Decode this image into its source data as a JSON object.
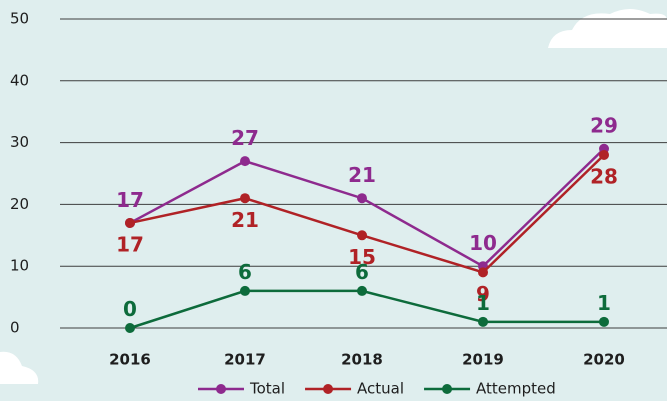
{
  "chart_data": {
    "type": "line",
    "categories": [
      "2016",
      "2017",
      "2018",
      "2019",
      "2020"
    ],
    "series": [
      {
        "name": "Total",
        "color": "#8e2a8e",
        "values": [
          17,
          27,
          21,
          10,
          29
        ]
      },
      {
        "name": "Actual",
        "color": "#b02226",
        "values": [
          17,
          21,
          15,
          9,
          28
        ]
      },
      {
        "name": "Attempted",
        "color": "#0d6b3b",
        "values": [
          0,
          6,
          6,
          1,
          1
        ]
      }
    ],
    "ylim": [
      0,
      50
    ],
    "yticks": [
      0,
      10,
      20,
      30,
      40,
      50
    ],
    "grid": true,
    "legend": "bottom"
  }
}
